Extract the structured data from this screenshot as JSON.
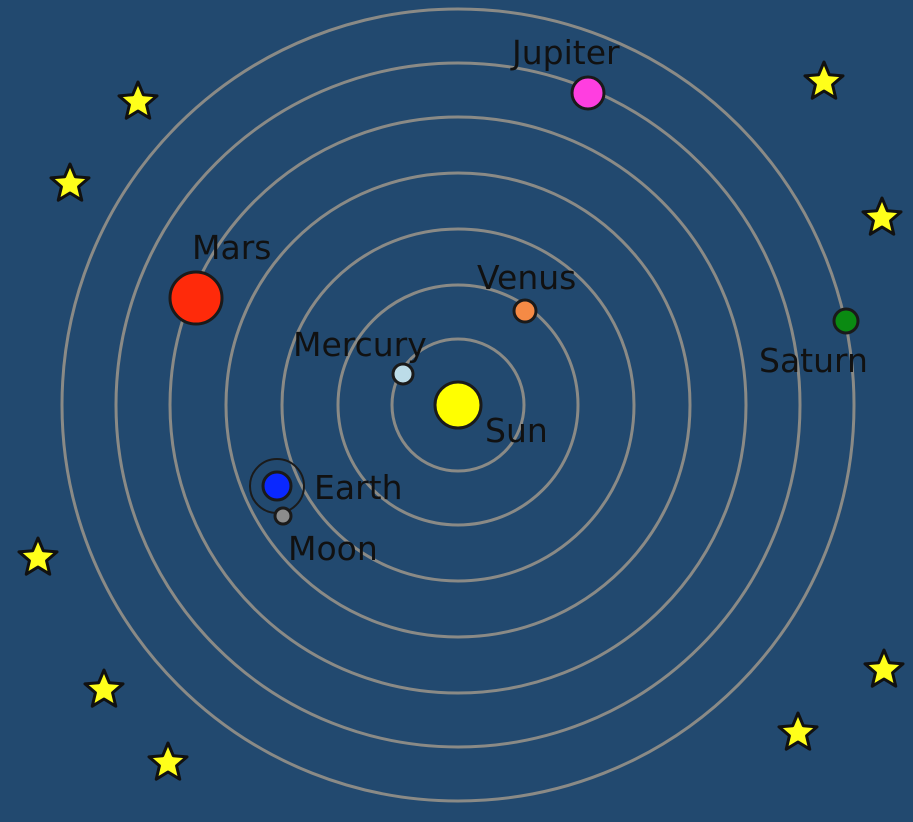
{
  "diagram": {
    "background_color": "#22496f",
    "orbit_color": "#8a8a86",
    "star_color": "#ffff1a",
    "bodies": [
      {
        "id": "sun",
        "label": "Sun",
        "color": "#ffff00"
      },
      {
        "id": "mercury",
        "label": "Mercury",
        "color": "#bcdce8"
      },
      {
        "id": "venus",
        "label": "Venus",
        "color": "#f58a45"
      },
      {
        "id": "earth",
        "label": "Earth",
        "color": "#0a28ff"
      },
      {
        "id": "moon",
        "label": "Moon",
        "color": "#8c8c8c"
      },
      {
        "id": "mars",
        "label": "Mars",
        "color": "#ff2a0a"
      },
      {
        "id": "jupiter",
        "label": "Jupiter",
        "color": "#ff3ee0"
      },
      {
        "id": "saturn",
        "label": "Saturn",
        "color": "#0a8a12"
      }
    ]
  }
}
